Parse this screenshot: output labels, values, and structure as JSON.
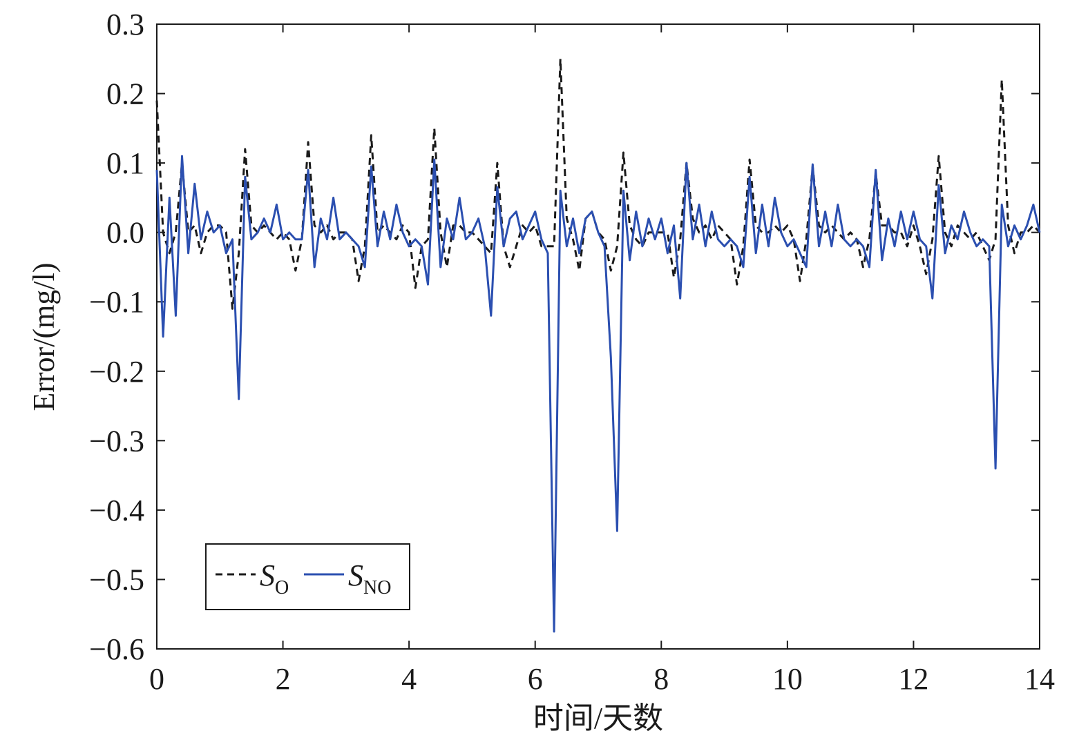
{
  "chart_data": {
    "type": "line",
    "xlabel": "时间/天数",
    "ylabel": "Error/(mg/l)",
    "x": [
      0,
      0.1,
      0.2,
      0.3,
      0.4,
      0.5,
      0.6,
      0.7,
      0.8,
      0.9,
      1,
      1.1,
      1.2,
      1.3,
      1.4,
      1.5,
      1.6,
      1.7,
      1.8,
      1.9,
      2,
      2.1,
      2.2,
      2.3,
      2.4,
      2.5,
      2.6,
      2.7,
      2.8,
      2.9,
      3,
      3.1,
      3.2,
      3.3,
      3.4,
      3.5,
      3.6,
      3.7,
      3.8,
      3.9,
      4,
      4.1,
      4.2,
      4.3,
      4.4,
      4.5,
      4.6,
      4.7,
      4.8,
      4.9,
      5,
      5.1,
      5.2,
      5.3,
      5.4,
      5.5,
      5.6,
      5.7,
      5.8,
      5.9,
      6,
      6.1,
      6.2,
      6.3,
      6.4,
      6.5,
      6.6,
      6.7,
      6.8,
      6.9,
      7,
      7.1,
      7.2,
      7.3,
      7.4,
      7.5,
      7.6,
      7.7,
      7.8,
      7.9,
      8,
      8.1,
      8.2,
      8.3,
      8.4,
      8.5,
      8.6,
      8.7,
      8.8,
      8.9,
      9,
      9.1,
      9.2,
      9.3,
      9.4,
      9.5,
      9.6,
      9.7,
      9.8,
      9.9,
      10,
      10.1,
      10.2,
      10.3,
      10.4,
      10.5,
      10.6,
      10.7,
      10.8,
      10.9,
      11,
      11.1,
      11.2,
      11.3,
      11.4,
      11.5,
      11.6,
      11.7,
      11.8,
      11.9,
      12,
      12.1,
      12.2,
      12.3,
      12.4,
      12.5,
      12.6,
      12.7,
      12.8,
      12.9,
      13,
      13.1,
      13.2,
      13.3,
      13.4,
      13.5,
      13.6,
      13.7,
      13.8,
      13.9,
      14
    ],
    "series": [
      {
        "name": "SO",
        "color": "#1a1a1a",
        "dash": true,
        "values": [
          0.19,
          0.0,
          -0.03,
          0.0,
          0.1,
          0.0,
          0.01,
          -0.03,
          0.0,
          0.01,
          0.01,
          0.0,
          -0.11,
          -0.03,
          0.12,
          0.01,
          0.0,
          0.01,
          0.0,
          -0.01,
          0.0,
          -0.01,
          -0.055,
          -0.01,
          0.13,
          0.01,
          0.0,
          0.01,
          -0.01,
          0.0,
          0.0,
          -0.01,
          -0.07,
          -0.02,
          0.14,
          0.0,
          0.01,
          0.0,
          -0.01,
          0.01,
          0.0,
          -0.08,
          -0.02,
          -0.01,
          0.15,
          0.0,
          -0.05,
          0.01,
          0.01,
          0.0,
          0.0,
          -0.01,
          -0.02,
          -0.03,
          0.1,
          -0.02,
          -0.05,
          -0.02,
          0.01,
          0.0,
          0.01,
          -0.02,
          -0.02,
          -0.02,
          0.25,
          0.02,
          -0.01,
          -0.055,
          0.02,
          0.03,
          0.0,
          -0.01,
          -0.055,
          -0.02,
          0.115,
          0.01,
          -0.01,
          -0.02,
          0.0,
          0.0,
          0.0,
          0.0,
          -0.065,
          -0.01,
          0.1,
          0.02,
          0.0,
          0.01,
          -0.01,
          0.01,
          0.0,
          -0.01,
          -0.075,
          -0.02,
          0.105,
          0.01,
          0.0,
          0.0,
          0.01,
          0.0,
          0.01,
          -0.01,
          -0.07,
          -0.01,
          0.095,
          0.01,
          0.0,
          0.01,
          0.0,
          -0.01,
          0.0,
          -0.01,
          -0.05,
          -0.01,
          0.085,
          0.01,
          0.01,
          0.0,
          0.0,
          -0.02,
          0.01,
          -0.02,
          -0.06,
          -0.01,
          0.11,
          0.0,
          -0.02,
          0.01,
          0.0,
          -0.01,
          0.0,
          -0.02,
          -0.04,
          -0.01,
          0.22,
          0.01,
          -0.03,
          0.0,
          0.0,
          0.01,
          0.0
        ]
      },
      {
        "name": "SNO",
        "color": "#2b4fb0",
        "dash": false,
        "values": [
          0.09,
          -0.15,
          0.05,
          -0.12,
          0.11,
          -0.03,
          0.07,
          -0.01,
          0.03,
          0.0,
          0.01,
          -0.03,
          -0.01,
          -0.24,
          0.08,
          -0.01,
          0.0,
          0.02,
          0.0,
          0.04,
          -0.01,
          0.0,
          -0.01,
          -0.01,
          0.09,
          -0.05,
          0.02,
          -0.01,
          0.05,
          -0.01,
          0.0,
          -0.01,
          -0.02,
          -0.05,
          0.095,
          -0.02,
          0.03,
          -0.01,
          0.04,
          0.0,
          -0.02,
          -0.01,
          -0.02,
          -0.075,
          0.105,
          -0.05,
          0.02,
          -0.01,
          0.05,
          -0.01,
          0.0,
          0.02,
          -0.02,
          -0.12,
          0.065,
          -0.02,
          0.02,
          0.03,
          -0.01,
          0.01,
          0.03,
          -0.01,
          -0.03,
          -0.575,
          0.06,
          -0.02,
          0.02,
          -0.03,
          0.02,
          0.03,
          0.0,
          -0.02,
          -0.18,
          -0.43,
          0.06,
          -0.04,
          0.03,
          -0.02,
          0.02,
          -0.01,
          0.02,
          -0.03,
          0.01,
          -0.095,
          0.1,
          -0.01,
          0.04,
          -0.02,
          0.03,
          -0.01,
          -0.02,
          -0.01,
          -0.02,
          -0.05,
          0.08,
          -0.03,
          0.04,
          -0.02,
          0.05,
          0.0,
          -0.02,
          -0.01,
          -0.03,
          -0.05,
          0.098,
          -0.02,
          0.03,
          -0.02,
          0.04,
          -0.01,
          -0.02,
          -0.01,
          -0.02,
          -0.05,
          0.09,
          -0.04,
          0.02,
          -0.02,
          0.03,
          -0.01,
          0.03,
          -0.01,
          -0.02,
          -0.095,
          0.068,
          -0.03,
          0.01,
          -0.01,
          0.03,
          0.0,
          -0.02,
          -0.01,
          -0.02,
          -0.34,
          0.04,
          -0.02,
          0.01,
          -0.01,
          0.01,
          0.04,
          0.0
        ]
      }
    ],
    "xlim": [
      0,
      14
    ],
    "xticks": [
      0,
      2,
      4,
      6,
      8,
      10,
      12,
      14
    ],
    "ylim": [
      -0.6,
      0.3
    ],
    "yticks": [
      {
        "value": -0.6,
        "label": "−0.6"
      },
      {
        "value": -0.5,
        "label": "−0.5"
      },
      {
        "value": -0.4,
        "label": "−0.4"
      },
      {
        "value": -0.3,
        "label": "−0.3"
      },
      {
        "value": -0.2,
        "label": "−0.2"
      },
      {
        "value": -0.1,
        "label": "−0.1"
      },
      {
        "value": 0,
        "label": "0.0"
      },
      0.1,
      0.2,
      0.3
    ],
    "legend": "lower left"
  }
}
